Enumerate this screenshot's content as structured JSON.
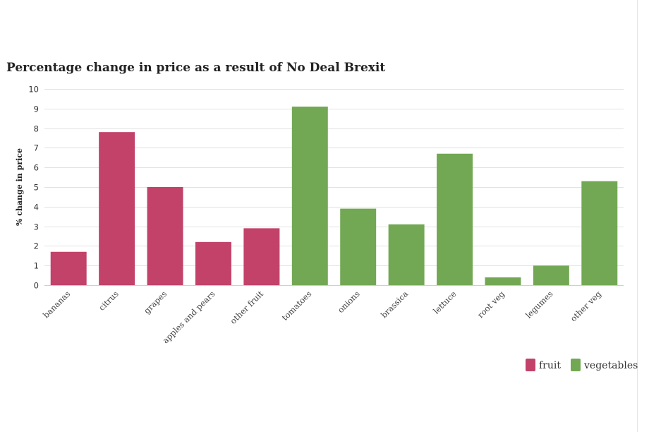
{
  "chart_data": {
    "type": "bar",
    "title": "Percentage change in price as a result of No Deal Brexit",
    "xlabel": "",
    "ylabel": "% change in price",
    "ylim": [
      0,
      10
    ],
    "yticks": [
      0,
      1,
      2,
      3,
      4,
      5,
      6,
      7,
      8,
      9,
      10
    ],
    "grid": true,
    "legend_position": "bottom-right",
    "categories": [
      "bananas",
      "citrus",
      "grapes",
      "apples and pears",
      "other fruit",
      "tomatoes",
      "onions",
      "brassica",
      "lettuce",
      "root veg",
      "legumes",
      "other veg"
    ],
    "values": [
      1.7,
      7.8,
      5.0,
      2.2,
      2.9,
      9.1,
      3.9,
      3.1,
      6.7,
      0.4,
      1.0,
      5.3
    ],
    "groups": [
      "fruit",
      "fruit",
      "fruit",
      "fruit",
      "fruit",
      "vegetables",
      "vegetables",
      "vegetables",
      "vegetables",
      "vegetables",
      "vegetables",
      "vegetables"
    ],
    "legend": [
      {
        "name": "fruit",
        "color": "#c2426a"
      },
      {
        "name": "vegetables",
        "color": "#72a854"
      }
    ]
  }
}
